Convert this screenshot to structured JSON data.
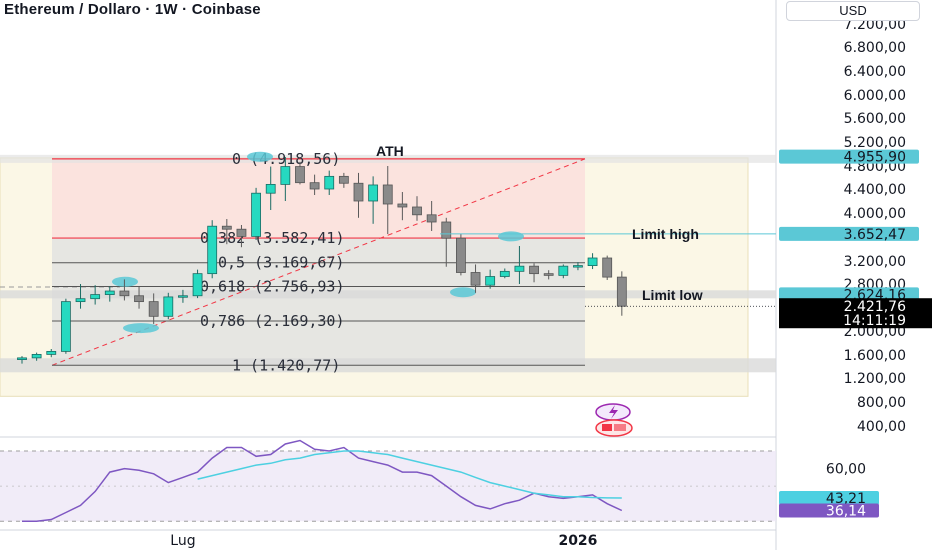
{
  "header": {
    "title": "Ethereum / Dollaro · 1W · Coinbase",
    "currency": "USD"
  },
  "colors": {
    "up": "#26a69a",
    "up_body": "#26d9c0",
    "down": "#7a7a7a",
    "down_body": "#8a8a8a",
    "rsi_line": "#7e57c2",
    "rsi_ma": "#4dd0e1",
    "fib_red": "#f23645",
    "highlight_cyan": "#5bc8d6",
    "grid": "#e0e3eb"
  },
  "chart_data": [
    {
      "type": "candlestick",
      "title": "Ethereum / Dollaro · 1W · Coinbase",
      "y_ticks": [
        "7.200,00",
        "6.800,00",
        "6.400,00",
        "6.000,00",
        "5.600,00",
        "5.200,00",
        "4.800,00",
        "4.400,00",
        "4.000,00",
        "3.200,00",
        "2.800,00",
        "2.000,00",
        "1.600,00",
        "1.200,00",
        "800,00",
        "400,00"
      ],
      "y_tick_values": [
        7200,
        6800,
        6400,
        6000,
        5600,
        5200,
        4800,
        4400,
        4000,
        3200,
        2800,
        2000,
        1600,
        1200,
        800,
        400
      ],
      "x_labels": [
        {
          "label": "Lug",
          "index": 11
        },
        {
          "label": "2026",
          "index": 38
        }
      ],
      "candles": [
        {
          "o": 1520,
          "h": 1580,
          "l": 1450,
          "c": 1550
        },
        {
          "o": 1550,
          "h": 1640,
          "l": 1500,
          "c": 1610
        },
        {
          "o": 1610,
          "h": 1700,
          "l": 1560,
          "c": 1660
        },
        {
          "o": 1660,
          "h": 2550,
          "l": 1620,
          "c": 2500
        },
        {
          "o": 2500,
          "h": 2800,
          "l": 2380,
          "c": 2550
        },
        {
          "o": 2550,
          "h": 2780,
          "l": 2450,
          "c": 2620
        },
        {
          "o": 2620,
          "h": 2760,
          "l": 2500,
          "c": 2680
        },
        {
          "o": 2680,
          "h": 2880,
          "l": 2520,
          "c": 2600
        },
        {
          "o": 2600,
          "h": 2750,
          "l": 2380,
          "c": 2500
        },
        {
          "o": 2500,
          "h": 2640,
          "l": 2120,
          "c": 2250
        },
        {
          "o": 2250,
          "h": 2650,
          "l": 2200,
          "c": 2580
        },
        {
          "o": 2580,
          "h": 2700,
          "l": 2480,
          "c": 2600
        },
        {
          "o": 2600,
          "h": 3050,
          "l": 2560,
          "c": 2980
        },
        {
          "o": 2980,
          "h": 3880,
          "l": 2900,
          "c": 3780
        },
        {
          "o": 3780,
          "h": 3900,
          "l": 3480,
          "c": 3730
        },
        {
          "o": 3730,
          "h": 3800,
          "l": 3430,
          "c": 3610
        },
        {
          "o": 3610,
          "h": 4420,
          "l": 3550,
          "c": 4330
        },
        {
          "o": 4330,
          "h": 4790,
          "l": 4050,
          "c": 4480
        },
        {
          "o": 4480,
          "h": 4950,
          "l": 4200,
          "c": 4790
        },
        {
          "o": 4790,
          "h": 4870,
          "l": 4480,
          "c": 4510
        },
        {
          "o": 4510,
          "h": 4650,
          "l": 4300,
          "c": 4400
        },
        {
          "o": 4400,
          "h": 4720,
          "l": 4300,
          "c": 4620
        },
        {
          "o": 4620,
          "h": 4680,
          "l": 4420,
          "c": 4500
        },
        {
          "o": 4500,
          "h": 4680,
          "l": 3920,
          "c": 4200
        },
        {
          "o": 4200,
          "h": 4620,
          "l": 3820,
          "c": 4470
        },
        {
          "o": 4470,
          "h": 4800,
          "l": 3650,
          "c": 4150
        },
        {
          "o": 4150,
          "h": 4350,
          "l": 3880,
          "c": 4100
        },
        {
          "o": 4100,
          "h": 4280,
          "l": 3870,
          "c": 3970
        },
        {
          "o": 3970,
          "h": 4200,
          "l": 3700,
          "c": 3850
        },
        {
          "o": 3850,
          "h": 3920,
          "l": 3100,
          "c": 3580
        },
        {
          "o": 3580,
          "h": 3650,
          "l": 2950,
          "c": 3000
        },
        {
          "o": 3000,
          "h": 3140,
          "l": 2650,
          "c": 2780
        },
        {
          "o": 2780,
          "h": 3050,
          "l": 2720,
          "c": 2930
        },
        {
          "o": 2930,
          "h": 3070,
          "l": 2900,
          "c": 3020
        },
        {
          "o": 3020,
          "h": 3450,
          "l": 2800,
          "c": 3110
        },
        {
          "o": 3110,
          "h": 3160,
          "l": 2830,
          "c": 2980
        },
        {
          "o": 2980,
          "h": 3040,
          "l": 2880,
          "c": 2950
        },
        {
          "o": 2950,
          "h": 3140,
          "l": 2900,
          "c": 3110
        },
        {
          "o": 3110,
          "h": 3180,
          "l": 3040,
          "c": 3120
        },
        {
          "o": 3120,
          "h": 3330,
          "l": 3060,
          "c": 3250
        },
        {
          "o": 3250,
          "h": 3290,
          "l": 2870,
          "c": 2920
        },
        {
          "o": 2920,
          "h": 3020,
          "l": 2260,
          "c": 2421.76
        }
      ],
      "fibonacci": [
        {
          "label": "0 (4.918,56)",
          "value": 4918.56
        },
        {
          "label": "0,382 (3.582,41)",
          "value": 3582.41
        },
        {
          "label": "0,5 (3.169,67)",
          "value": 3169.67
        },
        {
          "label": "0,618 (2.756,93)",
          "value": 2756.93
        },
        {
          "label": "0,786 (2.169,30)",
          "value": 2169.3
        },
        {
          "label": "1 (1.420,77)",
          "value": 1420.77
        }
      ],
      "annotations": [
        {
          "label": "ATH",
          "value": 4918.56
        },
        {
          "label": "Limit high",
          "value": 3652.47
        },
        {
          "label": "Limit low",
          "value": 2624.16
        }
      ],
      "price_tags": [
        {
          "label": "4.955,90",
          "value": 4955.9,
          "color": "#5bc8d6"
        },
        {
          "label": "3.652,47",
          "value": 3652.47,
          "color": "#5bc8d6"
        },
        {
          "label": "2.624,16",
          "value": 2624.16,
          "color": "#5bc8d6"
        }
      ],
      "last_price": {
        "label": "2.421,76",
        "countdown": "14:11:19",
        "value": 2421.76
      },
      "ylim": [
        0,
        7350
      ]
    },
    {
      "type": "line",
      "title": "",
      "y_ticks": [
        "60,00"
      ],
      "y_tick_values": [
        60
      ],
      "ylim": [
        25,
        78
      ],
      "band": [
        30,
        70
      ],
      "series": [
        {
          "values": [
            30,
            30,
            31,
            35,
            39,
            47,
            58,
            60,
            59,
            57,
            52,
            55,
            58,
            66,
            72,
            72,
            67,
            68,
            74,
            76,
            71,
            70,
            72,
            66,
            64,
            62,
            58,
            58,
            56,
            50,
            44,
            39,
            37,
            40,
            42,
            46,
            44,
            43,
            44,
            45,
            40,
            36.14
          ]
        },
        {
          "values": [
            null,
            null,
            null,
            null,
            null,
            null,
            null,
            null,
            null,
            null,
            null,
            null,
            54,
            56,
            58,
            60,
            62,
            63,
            65,
            66,
            68,
            69,
            70,
            70,
            69,
            68,
            66,
            64,
            62,
            60,
            58,
            55,
            52,
            50,
            48,
            46,
            45,
            44,
            44,
            43.5,
            43.3,
            43.21
          ]
        }
      ],
      "value_tags": [
        {
          "label": "43,21",
          "value": 43.21,
          "color": "#4dd0e1"
        },
        {
          "label": "36,14",
          "value": 36.14,
          "color": "#7e57c2"
        }
      ]
    }
  ]
}
